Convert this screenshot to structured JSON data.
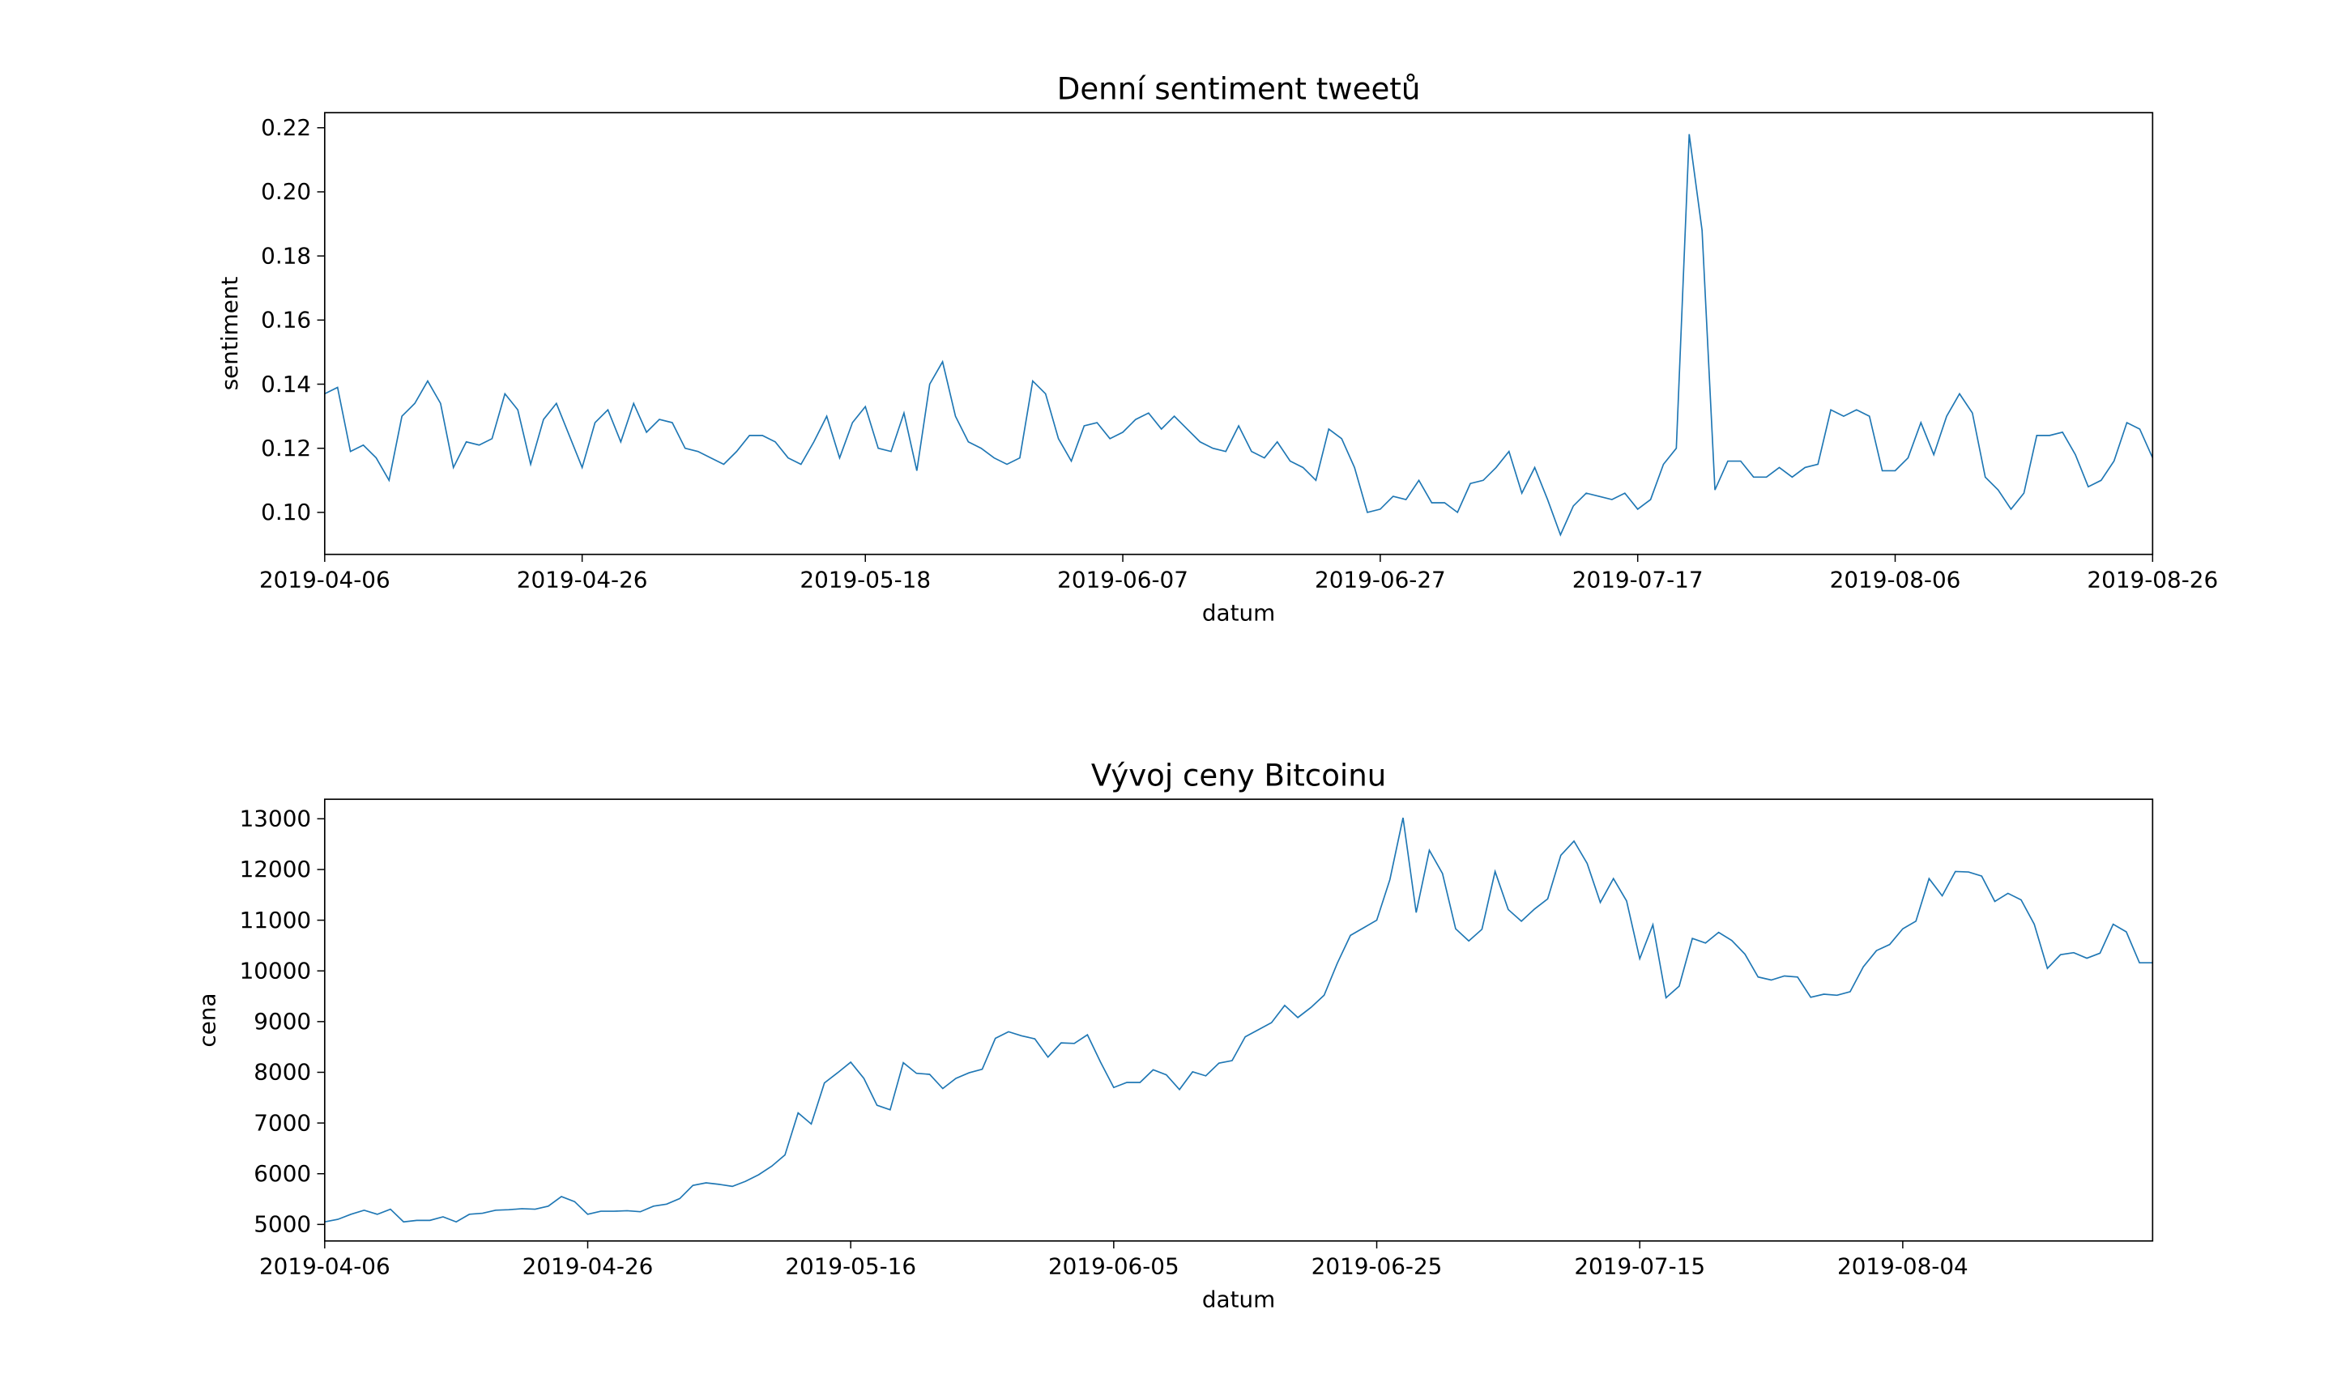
{
  "chart_data": [
    {
      "type": "line",
      "title": "Denní sentiment tweetů",
      "xlabel": "datum",
      "ylabel": "sentiment",
      "color": "#1f77b4",
      "x": [
        "2019-04-06",
        "2019-04-07",
        "2019-04-08",
        "2019-04-09",
        "2019-04-10",
        "2019-04-11",
        "2019-04-12",
        "2019-04-13",
        "2019-04-14",
        "2019-04-15",
        "2019-04-16",
        "2019-04-17",
        "2019-04-18",
        "2019-04-19",
        "2019-04-20",
        "2019-04-21",
        "2019-04-22",
        "2019-04-23",
        "2019-04-24",
        "2019-04-25",
        "2019-04-26",
        "2019-04-27",
        "2019-04-28",
        "2019-04-29",
        "2019-04-30",
        "2019-05-01",
        "2019-05-02",
        "2019-05-03",
        "2019-05-04",
        "2019-05-05",
        "2019-05-06",
        "2019-05-07",
        "2019-05-08",
        "2019-05-09",
        "2019-05-10",
        "2019-05-11",
        "2019-05-12",
        "2019-05-13",
        "2019-05-14",
        "2019-05-15",
        "2019-05-16",
        "2019-05-17",
        "2019-05-18",
        "2019-05-19",
        "2019-05-20",
        "2019-05-21",
        "2019-05-22",
        "2019-05-23",
        "2019-05-24",
        "2019-05-25",
        "2019-05-26",
        "2019-05-27",
        "2019-05-28",
        "2019-05-29",
        "2019-05-30",
        "2019-05-31",
        "2019-06-01",
        "2019-06-02",
        "2019-06-03",
        "2019-06-04",
        "2019-06-05",
        "2019-06-06",
        "2019-06-07",
        "2019-06-08",
        "2019-06-09",
        "2019-06-10",
        "2019-06-11",
        "2019-06-12",
        "2019-06-13",
        "2019-06-14",
        "2019-06-15",
        "2019-06-16",
        "2019-06-17",
        "2019-06-18",
        "2019-06-19",
        "2019-06-20",
        "2019-06-21",
        "2019-06-22",
        "2019-06-23",
        "2019-06-24",
        "2019-06-25",
        "2019-06-26",
        "2019-06-27",
        "2019-06-28",
        "2019-06-29",
        "2019-06-30",
        "2019-07-01",
        "2019-07-02",
        "2019-07-03",
        "2019-07-04",
        "2019-07-05",
        "2019-07-06",
        "2019-07-07",
        "2019-07-08",
        "2019-07-09",
        "2019-07-10",
        "2019-07-11",
        "2019-07-12",
        "2019-07-13",
        "2019-07-14",
        "2019-07-15",
        "2019-07-16",
        "2019-07-17",
        "2019-07-18",
        "2019-07-19",
        "2019-07-20",
        "2019-07-21",
        "2019-07-22",
        "2019-07-23",
        "2019-07-24",
        "2019-07-25",
        "2019-07-26",
        "2019-07-27",
        "2019-07-28",
        "2019-07-29",
        "2019-07-30",
        "2019-07-31",
        "2019-08-01",
        "2019-08-02",
        "2019-08-03",
        "2019-08-04",
        "2019-08-05",
        "2019-08-06",
        "2019-08-07",
        "2019-08-08",
        "2019-08-09",
        "2019-08-10",
        "2019-08-11",
        "2019-08-12",
        "2019-08-13",
        "2019-08-14",
        "2019-08-15",
        "2019-08-16",
        "2019-08-17",
        "2019-08-18",
        "2019-08-19",
        "2019-08-20",
        "2019-08-21",
        "2019-08-22",
        "2019-08-23",
        "2019-08-24",
        "2019-08-25",
        "2019-08-26"
      ],
      "values": [
        0.137,
        0.139,
        0.119,
        0.121,
        0.117,
        0.11,
        0.13,
        0.134,
        0.141,
        0.134,
        0.114,
        0.122,
        0.121,
        0.123,
        0.137,
        0.132,
        0.115,
        0.129,
        0.134,
        0.124,
        0.114,
        0.128,
        0.132,
        0.122,
        0.134,
        0.125,
        0.129,
        0.128,
        0.12,
        0.119,
        0.117,
        0.115,
        0.119,
        0.124,
        0.124,
        0.122,
        0.117,
        0.115,
        0.122,
        0.13,
        0.117,
        0.128,
        0.133,
        0.12,
        0.119,
        0.131,
        0.113,
        0.14,
        0.147,
        0.13,
        0.122,
        0.12,
        0.117,
        0.115,
        0.117,
        0.141,
        0.137,
        0.123,
        0.116,
        0.127,
        0.128,
        0.123,
        0.125,
        0.129,
        0.131,
        0.126,
        0.13,
        0.126,
        0.122,
        0.12,
        0.119,
        0.127,
        0.119,
        0.117,
        0.122,
        0.116,
        0.114,
        0.11,
        0.126,
        0.123,
        0.114,
        0.1,
        0.101,
        0.105,
        0.104,
        0.11,
        0.103,
        0.103,
        0.1,
        0.109,
        0.11,
        0.114,
        0.119,
        0.106,
        0.114,
        0.104,
        0.093,
        0.102,
        0.106,
        0.105,
        0.104,
        0.106,
        0.101,
        0.104,
        0.115,
        0.12,
        0.218,
        0.188,
        0.107,
        0.116,
        0.116,
        0.111,
        0.111,
        0.114,
        0.111,
        0.114,
        0.115,
        0.132,
        0.13,
        0.132,
        0.13,
        0.113,
        0.113,
        0.117,
        0.128,
        0.118,
        0.13,
        0.137,
        0.131,
        0.111,
        0.107,
        0.101,
        0.106,
        0.124,
        0.124,
        0.125,
        0.118,
        0.108,
        0.11,
        0.116,
        0.128,
        0.126,
        0.117
      ],
      "xlim": [
        "2019-04-06",
        "2019-08-26"
      ],
      "xticks": [
        "2019-04-06",
        "2019-04-26",
        "2019-05-18",
        "2019-06-07",
        "2019-06-27",
        "2019-07-17",
        "2019-08-06",
        "2019-08-26"
      ],
      "ylim": [
        0.0869,
        0.2247
      ],
      "yticks": [
        {
          "value": 0.1,
          "label": "0.10"
        },
        0.12,
        0.14,
        0.16,
        0.18,
        {
          "value": 0.2,
          "label": "0.20"
        },
        0.22
      ]
    },
    {
      "type": "line",
      "title": "Vývoj ceny Bitcoinu",
      "xlabel": "datum",
      "ylabel": "cena",
      "color": "#1f77b4",
      "x": [
        "2019-04-06",
        "2019-04-07",
        "2019-04-08",
        "2019-04-09",
        "2019-04-10",
        "2019-04-11",
        "2019-04-12",
        "2019-04-13",
        "2019-04-14",
        "2019-04-15",
        "2019-04-16",
        "2019-04-17",
        "2019-04-18",
        "2019-04-19",
        "2019-04-20",
        "2019-04-21",
        "2019-04-22",
        "2019-04-23",
        "2019-04-24",
        "2019-04-25",
        "2019-04-26",
        "2019-04-27",
        "2019-04-28",
        "2019-04-29",
        "2019-04-30",
        "2019-05-01",
        "2019-05-02",
        "2019-05-03",
        "2019-05-04",
        "2019-05-05",
        "2019-05-06",
        "2019-05-07",
        "2019-05-08",
        "2019-05-09",
        "2019-05-10",
        "2019-05-11",
        "2019-05-12",
        "2019-05-13",
        "2019-05-14",
        "2019-05-15",
        "2019-05-16",
        "2019-05-17",
        "2019-05-18",
        "2019-05-19",
        "2019-05-20",
        "2019-05-21",
        "2019-05-22",
        "2019-05-23",
        "2019-05-24",
        "2019-05-25",
        "2019-05-26",
        "2019-05-27",
        "2019-05-28",
        "2019-05-29",
        "2019-05-30",
        "2019-05-31",
        "2019-06-01",
        "2019-06-02",
        "2019-06-03",
        "2019-06-04",
        "2019-06-05",
        "2019-06-06",
        "2019-06-07",
        "2019-06-08",
        "2019-06-09",
        "2019-06-10",
        "2019-06-11",
        "2019-06-12",
        "2019-06-13",
        "2019-06-14",
        "2019-06-15",
        "2019-06-16",
        "2019-06-17",
        "2019-06-18",
        "2019-06-19",
        "2019-06-20",
        "2019-06-21",
        "2019-06-22",
        "2019-06-23",
        "2019-06-24",
        "2019-06-25",
        "2019-06-26",
        "2019-06-27",
        "2019-06-28",
        "2019-06-29",
        "2019-06-30",
        "2019-07-01",
        "2019-07-02",
        "2019-07-03",
        "2019-07-04",
        "2019-07-05",
        "2019-07-06",
        "2019-07-07",
        "2019-07-08",
        "2019-07-09",
        "2019-07-10",
        "2019-07-11",
        "2019-07-12",
        "2019-07-13",
        "2019-07-14",
        "2019-07-15",
        "2019-07-16",
        "2019-07-17",
        "2019-07-18",
        "2019-07-19",
        "2019-07-20",
        "2019-07-21",
        "2019-07-22",
        "2019-07-23",
        "2019-07-24",
        "2019-07-25",
        "2019-07-26",
        "2019-07-27",
        "2019-07-28",
        "2019-07-29",
        "2019-07-30",
        "2019-07-31",
        "2019-08-01",
        "2019-08-02",
        "2019-08-03",
        "2019-08-04",
        "2019-08-05",
        "2019-08-06",
        "2019-08-07",
        "2019-08-08",
        "2019-08-09",
        "2019-08-10",
        "2019-08-11",
        "2019-08-12",
        "2019-08-13",
        "2019-08-14",
        "2019-08-15",
        "2019-08-16",
        "2019-08-17",
        "2019-08-18",
        "2019-08-19",
        "2019-08-20",
        "2019-08-21",
        "2019-08-22",
        "2019-08-23"
      ],
      "values": [
        5050,
        5100,
        5200,
        5280,
        5200,
        5300,
        5050,
        5080,
        5080,
        5150,
        5050,
        5200,
        5220,
        5280,
        5290,
        5310,
        5300,
        5360,
        5550,
        5450,
        5200,
        5260,
        5260,
        5270,
        5250,
        5360,
        5400,
        5510,
        5770,
        5820,
        5790,
        5750,
        5850,
        5980,
        6150,
        6370,
        7200,
        6980,
        7790,
        7990,
        8200,
        7880,
        7350,
        7260,
        8190,
        7980,
        7960,
        7680,
        7880,
        7990,
        8060,
        8670,
        8800,
        8720,
        8660,
        8300,
        8580,
        8570,
        8740,
        8200,
        7700,
        7800,
        7800,
        8050,
        7950,
        7660,
        8010,
        7930,
        8180,
        8230,
        8700,
        8840,
        8980,
        9320,
        9080,
        9280,
        9520,
        10150,
        10700,
        10850,
        11000,
        11800,
        13020,
        11150,
        12380,
        11920,
        10830,
        10590,
        10820,
        11960,
        11210,
        10980,
        11220,
        11420,
        12280,
        12560,
        12120,
        11350,
        11820,
        11380,
        10240,
        10910,
        9470,
        9700,
        10640,
        10550,
        10760,
        10600,
        10330,
        9880,
        9820,
        9900,
        9880,
        9480,
        9540,
        9520,
        9590,
        10080,
        10400,
        10520,
        10830,
        10980,
        11820,
        11480,
        11960,
        11950,
        11870,
        11370,
        11530,
        11400,
        10920,
        10050,
        10320,
        10360,
        10250,
        10350,
        10920,
        10770,
        10160,
        10160
      ],
      "xlim": [
        "2019-04-06",
        "2019-08-23"
      ],
      "xticks": [
        "2019-04-06",
        "2019-04-26",
        "2019-05-16",
        "2019-06-05",
        "2019-06-25",
        "2019-07-15",
        "2019-08-04"
      ],
      "ylim": [
        4674,
        13385
      ],
      "yticks": [
        5000,
        6000,
        7000,
        8000,
        9000,
        10000,
        11000,
        12000,
        13000
      ]
    }
  ]
}
